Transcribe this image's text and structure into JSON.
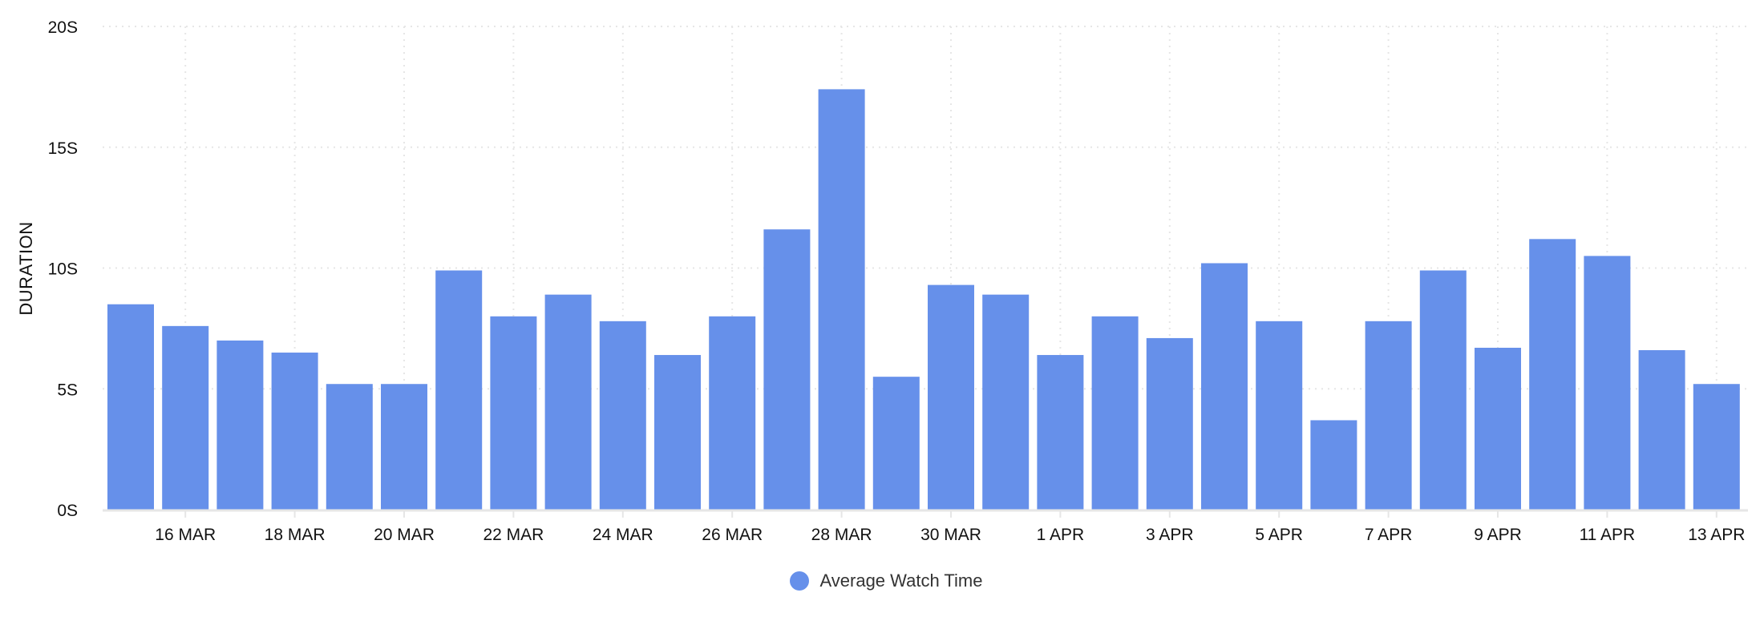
{
  "chart_data": {
    "type": "bar",
    "title": "",
    "xlabel": "",
    "ylabel": "DURATION",
    "ylim": [
      0,
      20
    ],
    "yticks": [
      0,
      5,
      10,
      15,
      20
    ],
    "ytick_labels": [
      "0S",
      "5S",
      "10S",
      "15S",
      "20S"
    ],
    "grid": true,
    "legend_position": "bottom-center",
    "categories": [
      "15 MAR",
      "16 MAR",
      "17 MAR",
      "18 MAR",
      "19 MAR",
      "20 MAR",
      "21 MAR",
      "22 MAR",
      "23 MAR",
      "24 MAR",
      "25 MAR",
      "26 MAR",
      "27 MAR",
      "28 MAR",
      "29 MAR",
      "30 MAR",
      "31 MAR",
      "1 APR",
      "2 APR",
      "3 APR",
      "4 APR",
      "5 APR",
      "6 APR",
      "7 APR",
      "8 APR",
      "9 APR",
      "10 APR",
      "11 APR",
      "12 APR",
      "13 APR"
    ],
    "xtick_labels": [
      "16 MAR",
      "18 MAR",
      "20 MAR",
      "22 MAR",
      "24 MAR",
      "26 MAR",
      "28 MAR",
      "30 MAR",
      "1 APR",
      "3 APR",
      "5 APR",
      "7 APR",
      "9 APR",
      "11 APR",
      "13 APR"
    ],
    "series": [
      {
        "name": "Average Watch Time",
        "color": "#6690EA",
        "values": [
          8.5,
          7.6,
          7.0,
          6.5,
          5.2,
          5.2,
          9.9,
          8.0,
          8.9,
          7.8,
          6.4,
          8.0,
          11.6,
          17.4,
          5.5,
          9.3,
          8.9,
          6.4,
          8.0,
          7.1,
          10.2,
          7.8,
          3.7,
          7.8,
          9.9,
          6.7,
          11.2,
          10.5,
          6.6,
          5.2
        ]
      }
    ]
  },
  "legend": {
    "items": [
      {
        "label": "Average Watch Time",
        "color": "#6690EA"
      }
    ]
  },
  "colors": {
    "bar": "#6690EA",
    "grid": "#e6e6e6",
    "axis": "#e6e6e6",
    "text": "#111111",
    "legend_text": "#333333"
  }
}
